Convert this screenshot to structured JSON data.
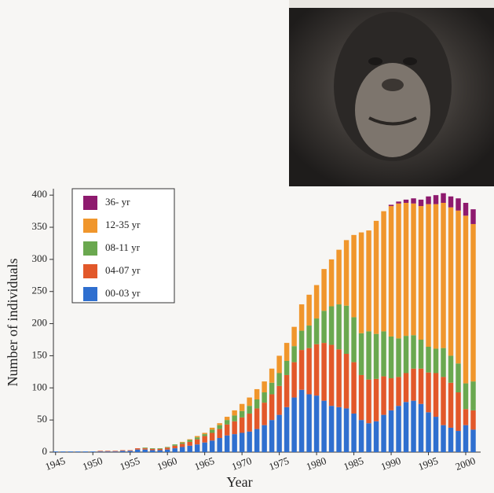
{
  "chart_data": {
    "type": "stacked-bar",
    "x_label": "Year",
    "y_label": "Number of individuals",
    "x": [
      1945,
      1946,
      1947,
      1948,
      1949,
      1950,
      1951,
      1952,
      1953,
      1954,
      1955,
      1956,
      1957,
      1958,
      1959,
      1960,
      1961,
      1962,
      1963,
      1964,
      1965,
      1966,
      1967,
      1968,
      1969,
      1970,
      1971,
      1972,
      1973,
      1974,
      1975,
      1976,
      1977,
      1978,
      1979,
      1980,
      1981,
      1982,
      1983,
      1984,
      1985,
      1986,
      1987,
      1988,
      1989,
      1990,
      1991,
      1992,
      1993,
      1994,
      1995,
      1996,
      1997,
      1998,
      1999,
      2000,
      2001
    ],
    "xlim": [
      1944.5,
      2002
    ],
    "xticks": [
      1945,
      1950,
      1955,
      1960,
      1965,
      1970,
      1975,
      1980,
      1985,
      1990,
      1995,
      2000
    ],
    "ylim": [
      0,
      410
    ],
    "yticks": [
      0,
      50,
      100,
      150,
      200,
      250,
      300,
      350,
      400
    ],
    "legend": "top-left",
    "series": [
      {
        "name": "00-03 yr",
        "color": "#2f6fcf",
        "values": [
          1,
          1,
          1,
          1,
          1,
          1,
          1,
          1,
          1,
          2,
          2,
          4,
          4,
          3,
          3,
          4,
          6,
          8,
          10,
          12,
          15,
          18,
          22,
          26,
          28,
          30,
          32,
          36,
          42,
          50,
          58,
          70,
          85,
          97,
          90,
          88,
          80,
          72,
          70,
          68,
          60,
          50,
          45,
          48,
          58,
          65,
          72,
          78,
          80,
          75,
          62,
          55,
          42,
          38,
          33,
          42,
          35
        ]
      },
      {
        "name": "04-07 yr",
        "color": "#e2582a",
        "values": [
          0,
          0,
          0,
          0,
          0,
          0,
          1,
          1,
          1,
          1,
          1,
          2,
          2,
          2,
          2,
          3,
          4,
          5,
          6,
          8,
          10,
          12,
          14,
          17,
          20,
          24,
          28,
          32,
          35,
          40,
          45,
          50,
          55,
          62,
          72,
          80,
          90,
          95,
          90,
          85,
          80,
          70,
          68,
          66,
          60,
          50,
          45,
          45,
          50,
          55,
          62,
          68,
          75,
          70,
          60,
          25,
          30
        ]
      },
      {
        "name": "08-11 yr",
        "color": "#6aa84f",
        "values": [
          0,
          0,
          0,
          0,
          0,
          0,
          0,
          0,
          0,
          0,
          0,
          0,
          1,
          1,
          1,
          1,
          2,
          2,
          3,
          3,
          3,
          5,
          6,
          7,
          9,
          10,
          12,
          14,
          16,
          18,
          20,
          22,
          25,
          30,
          35,
          40,
          50,
          60,
          70,
          75,
          70,
          65,
          75,
          70,
          70,
          65,
          60,
          58,
          52,
          45,
          40,
          38,
          45,
          42,
          45,
          40,
          45
        ]
      },
      {
        "name": "12-35 yr",
        "color": "#f0962c",
        "values": [
          0,
          0,
          0,
          0,
          0,
          0,
          0,
          0,
          0,
          0,
          0,
          0,
          0,
          0,
          0,
          0,
          0,
          1,
          1,
          2,
          2,
          3,
          3,
          5,
          8,
          11,
          13,
          16,
          17,
          22,
          27,
          28,
          30,
          41,
          48,
          52,
          65,
          73,
          85,
          102,
          128,
          157,
          157,
          176,
          187,
          203,
          210,
          207,
          205,
          208,
          222,
          225,
          226,
          231,
          238,
          261,
          245
        ]
      },
      {
        "name": "36- yr",
        "color": "#8e1a6e",
        "values": [
          0,
          0,
          0,
          0,
          0,
          0,
          0,
          0,
          0,
          0,
          0,
          0,
          0,
          0,
          0,
          0,
          0,
          0,
          0,
          0,
          0,
          0,
          0,
          0,
          0,
          0,
          0,
          0,
          0,
          0,
          0,
          0,
          0,
          0,
          0,
          0,
          0,
          0,
          0,
          0,
          0,
          0,
          0,
          0,
          0,
          2,
          3,
          5,
          8,
          10,
          12,
          14,
          15,
          17,
          19,
          20,
          23
        ]
      }
    ]
  }
}
